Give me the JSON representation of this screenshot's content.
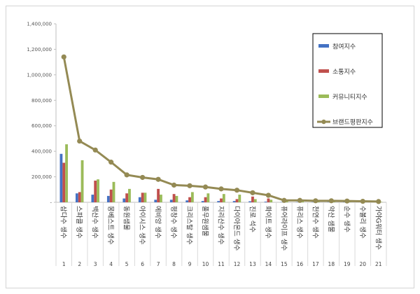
{
  "chart_data": {
    "type": "bar",
    "title": "",
    "xlabel": "",
    "ylabel": "",
    "ylim": [
      0,
      1400000
    ],
    "yticks": [
      0,
      200000,
      400000,
      600000,
      800000,
      1000000,
      1200000,
      1400000
    ],
    "ytick_labels": [
      "-",
      "200,000",
      "400,000",
      "600,000",
      "800,000",
      "1,000,000",
      "1,200,000",
      "1,400,000"
    ],
    "grid": false,
    "legend_position": "top-right",
    "ranks": [
      "1",
      "2",
      "3",
      "4",
      "5",
      "6",
      "7",
      "8",
      "9",
      "10",
      "11",
      "12",
      "13",
      "14",
      "15",
      "16",
      "17",
      "18",
      "19",
      "20",
      "21"
    ],
    "categories": [
      "삼다수 생수",
      "스파클 생수",
      "백산수 생수",
      "몽베스트 생수",
      "동원샘물",
      "아이시스 생수",
      "에비앙 생수",
      "평창수 생수",
      "크리스탈 생수",
      "풀무원샘물",
      "지리산수 생수",
      "다이아몬드 생수",
      "진로 석수",
      "화이트 생수",
      "퓨어라이프 생수",
      "퓨리스 생수",
      "천연수 생수",
      "약산 샘물",
      "순수 생수",
      "수볼리 생수",
      "가야G워터 생수"
    ],
    "series": [
      {
        "name": "참여지수",
        "kind": "bar",
        "color": "#4472c4",
        "values": [
          380000,
          70000,
          60000,
          50000,
          30000,
          40000,
          20000,
          20000,
          15000,
          10000,
          10000,
          10000,
          8000,
          5000,
          2000,
          2000,
          2000,
          2000,
          2000,
          1000,
          1000
        ]
      },
      {
        "name": "소통지수",
        "kind": "bar",
        "color": "#c0504d",
        "values": [
          310000,
          80000,
          170000,
          100000,
          70000,
          75000,
          105000,
          65000,
          40000,
          40000,
          30000,
          25000,
          45000,
          30000,
          5000,
          5000,
          5000,
          5000,
          3000,
          3000,
          2000
        ]
      },
      {
        "name": "커뮤니티지수",
        "kind": "bar",
        "color": "#9bbb59",
        "values": [
          455000,
          330000,
          180000,
          160000,
          105000,
          75000,
          60000,
          50000,
          80000,
          70000,
          65000,
          60000,
          25000,
          20000,
          8000,
          8000,
          6000,
          5000,
          5000,
          4000,
          3000
        ]
      },
      {
        "name": "브랜드평판지수",
        "kind": "line",
        "color": "#948a54",
        "values": [
          1140000,
          480000,
          410000,
          315000,
          215000,
          195000,
          180000,
          135000,
          130000,
          120000,
          105000,
          95000,
          75000,
          55000,
          15000,
          15000,
          12000,
          12000,
          10000,
          8000,
          6000
        ]
      }
    ]
  }
}
